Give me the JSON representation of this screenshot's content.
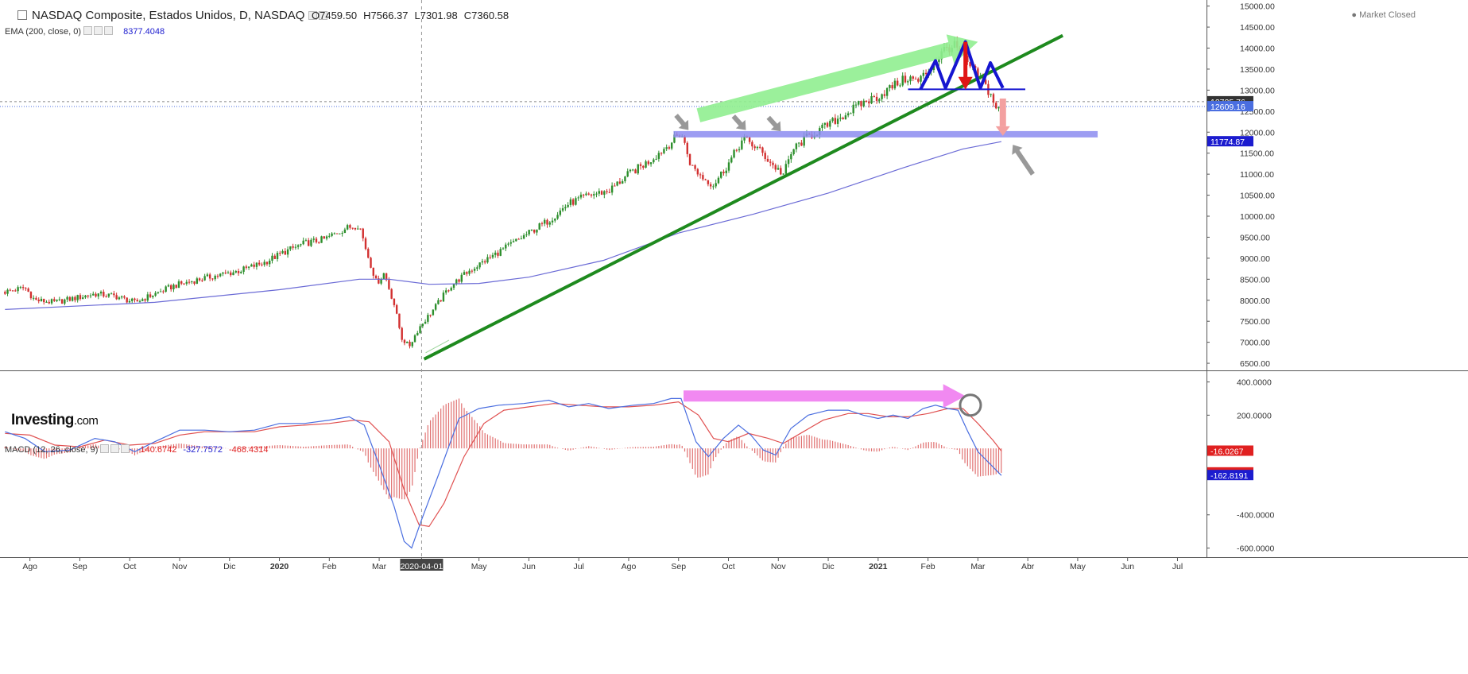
{
  "header": {
    "title": "NASDAQ Composite, Estados Unidos, D, NASDAQ",
    "open": "O7459.50",
    "high": "H7566.37",
    "low": "L7301.98",
    "close": "C7360.58",
    "ema_label": "EMA (200, close, 0)",
    "ema_value": "8377.4048",
    "macd_label": "MACD (12, 26, close, 9)",
    "macd_v1": "140.6742",
    "macd_v2": "-327.7572",
    "macd_v3": "-468.4314",
    "market_status": "Market Closed",
    "logo_main": "Investing",
    "logo_suffix": ".com"
  },
  "chart_data": {
    "type": "candlestick",
    "price_axis": {
      "ticks": [
        "15000.00",
        "14500.00",
        "14000.00",
        "13500.00",
        "13000.00",
        "12500.00",
        "12000.00",
        "11500.00",
        "11000.00",
        "10500.00",
        "10000.00",
        "9500.00",
        "9000.00",
        "8500.00",
        "8000.00",
        "7500.00",
        "7000.00",
        "6500.00"
      ],
      "ylim": [
        6350,
        15050
      ],
      "price_tags": [
        {
          "value": 12725.76,
          "label": "12725.76",
          "color": "#333333"
        },
        {
          "value": 12609.16,
          "label": "12609.16",
          "color": "#4a6ee0"
        },
        {
          "value": 11774.87,
          "label": "11774.87",
          "color": "#1c1ccf"
        }
      ]
    },
    "macd_axis": {
      "ticks": [
        "400.0000",
        "200.0000",
        "-400.0000",
        "-600.0000"
      ],
      "tick_values": [
        400,
        200,
        -400,
        -600
      ],
      "ylim": [
        -650,
        460
      ],
      "tags": [
        {
          "value": -16.0267,
          "label": "-16.0267",
          "color": "#e02020"
        },
        {
          "value": -146.7924,
          "label": "-146.7924",
          "color": "#e02020"
        },
        {
          "value": -162.8191,
          "label": "-162.8191",
          "color": "#1c1ccf"
        }
      ]
    },
    "x_axis": {
      "labels": [
        {
          "text": "Ago",
          "t": 0.5
        },
        {
          "text": "Sep",
          "t": 1.5
        },
        {
          "text": "Oct",
          "t": 2.5
        },
        {
          "text": "Nov",
          "t": 3.5
        },
        {
          "text": "Dic",
          "t": 4.5
        },
        {
          "text": "2020",
          "t": 5.5,
          "bold": true
        },
        {
          "text": "Feb",
          "t": 6.5
        },
        {
          "text": "Mar",
          "t": 7.5
        },
        {
          "text": "2020-04-01",
          "t": 8.35,
          "highlight": true
        },
        {
          "text": "May",
          "t": 9.5
        },
        {
          "text": "Jun",
          "t": 10.5
        },
        {
          "text": "Jul",
          "t": 11.5
        },
        {
          "text": "Ago",
          "t": 12.5
        },
        {
          "text": "Sep",
          "t": 13.5
        },
        {
          "text": "Oct",
          "t": 14.5
        },
        {
          "text": "Nov",
          "t": 15.5
        },
        {
          "text": "Dic",
          "t": 16.5
        },
        {
          "text": "2021",
          "t": 17.5,
          "bold": true
        },
        {
          "text": "Feb",
          "t": 18.5
        },
        {
          "text": "Mar",
          "t": 19.5
        },
        {
          "text": "Abr",
          "t": 20.5
        },
        {
          "text": "May",
          "t": 21.5
        },
        {
          "text": "Jun",
          "t": 22.5
        },
        {
          "text": "Jul",
          "t": 23.5
        }
      ],
      "crosshair_t": 8.35
    },
    "closes": [
      {
        "t": 0.0,
        "v": 8200
      },
      {
        "t": 0.4,
        "v": 8300
      },
      {
        "t": 0.6,
        "v": 8000
      },
      {
        "t": 1.0,
        "v": 7950
      },
      {
        "t": 1.4,
        "v": 8050
      },
      {
        "t": 1.8,
        "v": 8150
      },
      {
        "t": 2.2,
        "v": 8100
      },
      {
        "t": 2.6,
        "v": 7950
      },
      {
        "t": 3.0,
        "v": 8150
      },
      {
        "t": 3.4,
        "v": 8350
      },
      {
        "t": 3.9,
        "v": 8500
      },
      {
        "t": 4.3,
        "v": 8600
      },
      {
        "t": 4.7,
        "v": 8700
      },
      {
        "t": 5.2,
        "v": 8900
      },
      {
        "t": 5.6,
        "v": 9150
      },
      {
        "t": 6.0,
        "v": 9350
      },
      {
        "t": 6.4,
        "v": 9450
      },
      {
        "t": 6.8,
        "v": 9700
      },
      {
        "t": 7.1,
        "v": 9800
      },
      {
        "t": 7.25,
        "v": 9150
      },
      {
        "t": 7.45,
        "v": 8400
      },
      {
        "t": 7.6,
        "v": 8650
      },
      {
        "t": 7.8,
        "v": 7900
      },
      {
        "t": 7.95,
        "v": 7100
      },
      {
        "t": 8.1,
        "v": 6900
      },
      {
        "t": 8.3,
        "v": 7350
      },
      {
        "t": 8.6,
        "v": 7800
      },
      {
        "t": 8.9,
        "v": 8300
      },
      {
        "t": 9.3,
        "v": 8700
      },
      {
        "t": 9.7,
        "v": 9000
      },
      {
        "t": 10.1,
        "v": 9300
      },
      {
        "t": 10.5,
        "v": 9600
      },
      {
        "t": 10.9,
        "v": 9900
      },
      {
        "t": 11.3,
        "v": 10300
      },
      {
        "t": 11.7,
        "v": 10500
      },
      {
        "t": 12.1,
        "v": 10600
      },
      {
        "t": 12.5,
        "v": 11000
      },
      {
        "t": 12.9,
        "v": 11300
      },
      {
        "t": 13.3,
        "v": 11700
      },
      {
        "t": 13.55,
        "v": 12000
      },
      {
        "t": 13.75,
        "v": 11200
      },
      {
        "t": 14.0,
        "v": 10900
      },
      {
        "t": 14.2,
        "v": 10750
      },
      {
        "t": 14.5,
        "v": 11250
      },
      {
        "t": 14.8,
        "v": 11850
      },
      {
        "t": 15.1,
        "v": 11600
      },
      {
        "t": 15.4,
        "v": 11200
      },
      {
        "t": 15.6,
        "v": 11000
      },
      {
        "t": 15.8,
        "v": 11600
      },
      {
        "t": 16.1,
        "v": 11900
      },
      {
        "t": 16.4,
        "v": 12100
      },
      {
        "t": 16.8,
        "v": 12400
      },
      {
        "t": 17.2,
        "v": 12700
      },
      {
        "t": 17.5,
        "v": 12850
      },
      {
        "t": 17.8,
        "v": 13100
      },
      {
        "t": 18.1,
        "v": 13300
      },
      {
        "t": 18.3,
        "v": 13200
      },
      {
        "t": 18.6,
        "v": 13600
      },
      {
        "t": 18.85,
        "v": 14000
      },
      {
        "t": 19.05,
        "v": 14050
      },
      {
        "t": 19.25,
        "v": 13700
      },
      {
        "t": 19.45,
        "v": 13400
      },
      {
        "t": 19.6,
        "v": 13200
      },
      {
        "t": 19.75,
        "v": 12900
      },
      {
        "t": 19.9,
        "v": 12500
      },
      {
        "t": 19.97,
        "v": 12610
      }
    ],
    "ema200": [
      {
        "t": 0.0,
        "v": 7780
      },
      {
        "t": 3.0,
        "v": 7950
      },
      {
        "t": 5.5,
        "v": 8250
      },
      {
        "t": 7.1,
        "v": 8500
      },
      {
        "t": 7.7,
        "v": 8500
      },
      {
        "t": 8.5,
        "v": 8380
      },
      {
        "t": 9.5,
        "v": 8400
      },
      {
        "t": 10.5,
        "v": 8550
      },
      {
        "t": 12.0,
        "v": 8950
      },
      {
        "t": 13.5,
        "v": 9600
      },
      {
        "t": 15.0,
        "v": 10050
      },
      {
        "t": 16.5,
        "v": 10550
      },
      {
        "t": 18.0,
        "v": 11150
      },
      {
        "t": 19.2,
        "v": 11600
      },
      {
        "t": 19.97,
        "v": 11775
      }
    ],
    "macd_line": [
      {
        "t": 0.0,
        "v": 100
      },
      {
        "t": 0.4,
        "v": 60
      },
      {
        "t": 0.8,
        "v": -20
      },
      {
        "t": 1.3,
        "v": -10
      },
      {
        "t": 1.8,
        "v": 60
      },
      {
        "t": 2.2,
        "v": 40
      },
      {
        "t": 2.6,
        "v": -20
      },
      {
        "t": 3.0,
        "v": 40
      },
      {
        "t": 3.5,
        "v": 110
      },
      {
        "t": 4.0,
        "v": 110
      },
      {
        "t": 4.5,
        "v": 100
      },
      {
        "t": 5.0,
        "v": 110
      },
      {
        "t": 5.5,
        "v": 150
      },
      {
        "t": 6.0,
        "v": 150
      },
      {
        "t": 6.5,
        "v": 170
      },
      {
        "t": 6.9,
        "v": 190
      },
      {
        "t": 7.2,
        "v": 140
      },
      {
        "t": 7.5,
        "v": -100
      },
      {
        "t": 7.8,
        "v": -350
      },
      {
        "t": 8.0,
        "v": -560
      },
      {
        "t": 8.15,
        "v": -600
      },
      {
        "t": 8.35,
        "v": -430
      },
      {
        "t": 8.7,
        "v": -150
      },
      {
        "t": 9.1,
        "v": 180
      },
      {
        "t": 9.5,
        "v": 240
      },
      {
        "t": 9.9,
        "v": 260
      },
      {
        "t": 10.4,
        "v": 270
      },
      {
        "t": 10.9,
        "v": 290
      },
      {
        "t": 11.3,
        "v": 250
      },
      {
        "t": 11.7,
        "v": 270
      },
      {
        "t": 12.1,
        "v": 240
      },
      {
        "t": 12.6,
        "v": 260
      },
      {
        "t": 13.0,
        "v": 270
      },
      {
        "t": 13.35,
        "v": 300
      },
      {
        "t": 13.55,
        "v": 300
      },
      {
        "t": 13.85,
        "v": 40
      },
      {
        "t": 14.1,
        "v": -50
      },
      {
        "t": 14.4,
        "v": 60
      },
      {
        "t": 14.7,
        "v": 140
      },
      {
        "t": 14.95,
        "v": 80
      },
      {
        "t": 15.2,
        "v": -10
      },
      {
        "t": 15.45,
        "v": -40
      },
      {
        "t": 15.75,
        "v": 120
      },
      {
        "t": 16.1,
        "v": 200
      },
      {
        "t": 16.5,
        "v": 230
      },
      {
        "t": 16.9,
        "v": 230
      },
      {
        "t": 17.2,
        "v": 200
      },
      {
        "t": 17.5,
        "v": 180
      },
      {
        "t": 17.8,
        "v": 200
      },
      {
        "t": 18.1,
        "v": 180
      },
      {
        "t": 18.4,
        "v": 240
      },
      {
        "t": 18.65,
        "v": 260
      },
      {
        "t": 18.9,
        "v": 240
      },
      {
        "t": 19.1,
        "v": 230
      },
      {
        "t": 19.3,
        "v": 100
      },
      {
        "t": 19.5,
        "v": -20
      },
      {
        "t": 19.7,
        "v": -80
      },
      {
        "t": 19.97,
        "v": -163
      }
    ],
    "signal_line": [
      {
        "t": 0.0,
        "v": 90
      },
      {
        "t": 0.5,
        "v": 80
      },
      {
        "t": 1.0,
        "v": 20
      },
      {
        "t": 1.5,
        "v": 10
      },
      {
        "t": 2.0,
        "v": 50
      },
      {
        "t": 2.5,
        "v": 20
      },
      {
        "t": 3.0,
        "v": 30
      },
      {
        "t": 3.5,
        "v": 80
      },
      {
        "t": 4.0,
        "v": 100
      },
      {
        "t": 4.5,
        "v": 100
      },
      {
        "t": 5.0,
        "v": 100
      },
      {
        "t": 5.5,
        "v": 130
      },
      {
        "t": 6.0,
        "v": 140
      },
      {
        "t": 6.5,
        "v": 150
      },
      {
        "t": 7.0,
        "v": 170
      },
      {
        "t": 7.3,
        "v": 160
      },
      {
        "t": 7.7,
        "v": 40
      },
      {
        "t": 8.0,
        "v": -250
      },
      {
        "t": 8.3,
        "v": -460
      },
      {
        "t": 8.5,
        "v": -470
      },
      {
        "t": 8.8,
        "v": -330
      },
      {
        "t": 9.2,
        "v": -50
      },
      {
        "t": 9.6,
        "v": 150
      },
      {
        "t": 10.0,
        "v": 230
      },
      {
        "t": 10.5,
        "v": 250
      },
      {
        "t": 11.0,
        "v": 270
      },
      {
        "t": 11.5,
        "v": 260
      },
      {
        "t": 12.0,
        "v": 250
      },
      {
        "t": 12.5,
        "v": 250
      },
      {
        "t": 13.0,
        "v": 260
      },
      {
        "t": 13.5,
        "v": 280
      },
      {
        "t": 13.9,
        "v": 200
      },
      {
        "t": 14.2,
        "v": 60
      },
      {
        "t": 14.5,
        "v": 40
      },
      {
        "t": 14.9,
        "v": 90
      },
      {
        "t": 15.3,
        "v": 60
      },
      {
        "t": 15.6,
        "v": 30
      },
      {
        "t": 16.0,
        "v": 100
      },
      {
        "t": 16.4,
        "v": 170
      },
      {
        "t": 16.9,
        "v": 210
      },
      {
        "t": 17.3,
        "v": 210
      },
      {
        "t": 17.7,
        "v": 190
      },
      {
        "t": 18.1,
        "v": 190
      },
      {
        "t": 18.5,
        "v": 210
      },
      {
        "t": 18.9,
        "v": 240
      },
      {
        "t": 19.2,
        "v": 240
      },
      {
        "t": 19.5,
        "v": 150
      },
      {
        "t": 19.8,
        "v": 50
      },
      {
        "t": 19.97,
        "v": -16
      }
    ],
    "annotations": {
      "green_trendline": [
        {
          "t": 8.4,
          "v": 6600
        },
        {
          "t": 21.2,
          "v": 14300
        }
      ],
      "support_zone": {
        "t_start": 13.4,
        "t_end": 21.9,
        "v": 11950
      },
      "neckline": {
        "t_start": 18.1,
        "t_end": 20.45,
        "v": 13020
      },
      "pattern_path": [
        {
          "t": 18.35,
          "v": 13020
        },
        {
          "t": 18.65,
          "v": 13700
        },
        {
          "t": 18.85,
          "v": 13050
        },
        {
          "t": 19.25,
          "v": 14150
        },
        {
          "t": 19.55,
          "v": 13050
        },
        {
          "t": 19.75,
          "v": 13650
        },
        {
          "t": 20.0,
          "v": 13050
        }
      ],
      "drop_arrow": [
        {
          "t": 19.25,
          "v": 14150
        },
        {
          "t": 19.25,
          "v": 13050
        }
      ],
      "breakdown_arrow": [
        {
          "t": 20.0,
          "v": 12800
        },
        {
          "t": 20.0,
          "v": 11950
        }
      ],
      "up_channel_arrow": [
        {
          "t": 13.9,
          "v": 12400
        },
        {
          "t": 19.5,
          "v": 14150
        }
      ],
      "macd_divergence_arrow": [
        {
          "t": 13.6,
          "v": 315
        },
        {
          "t": 19.25,
          "v": 315
        }
      ],
      "macd_circle": {
        "t": 19.35,
        "v": 260
      },
      "grey_arrows": [
        {
          "from": {
            "t": 13.45,
            "v": 12400
          },
          "to": {
            "t": 13.7,
            "v": 12050
          }
        },
        {
          "from": {
            "t": 14.6,
            "v": 12380
          },
          "to": {
            "t": 14.85,
            "v": 12050
          }
        },
        {
          "from": {
            "t": 15.3,
            "v": 12350
          },
          "to": {
            "t": 15.55,
            "v": 12020
          }
        },
        {
          "from": {
            "t": 20.6,
            "v": 11000
          },
          "to": {
            "t": 20.2,
            "v": 11700
          }
        }
      ]
    }
  },
  "colors": {
    "up_candle": "#2d8f2d",
    "down_candle": "#d23030",
    "ema": "#6b6bd6",
    "macd": "#4a6ee0",
    "signal": "#e05050",
    "histogram": "#e07070",
    "trendline": "#1e8a1e",
    "support": "#8c8cf0",
    "pattern": "#1515d0",
    "drop_arrow": "#e01515",
    "channel_arrow": "#90ee90",
    "divergence_arrow": "#f07cf0",
    "grey_arrow": "#999999"
  }
}
